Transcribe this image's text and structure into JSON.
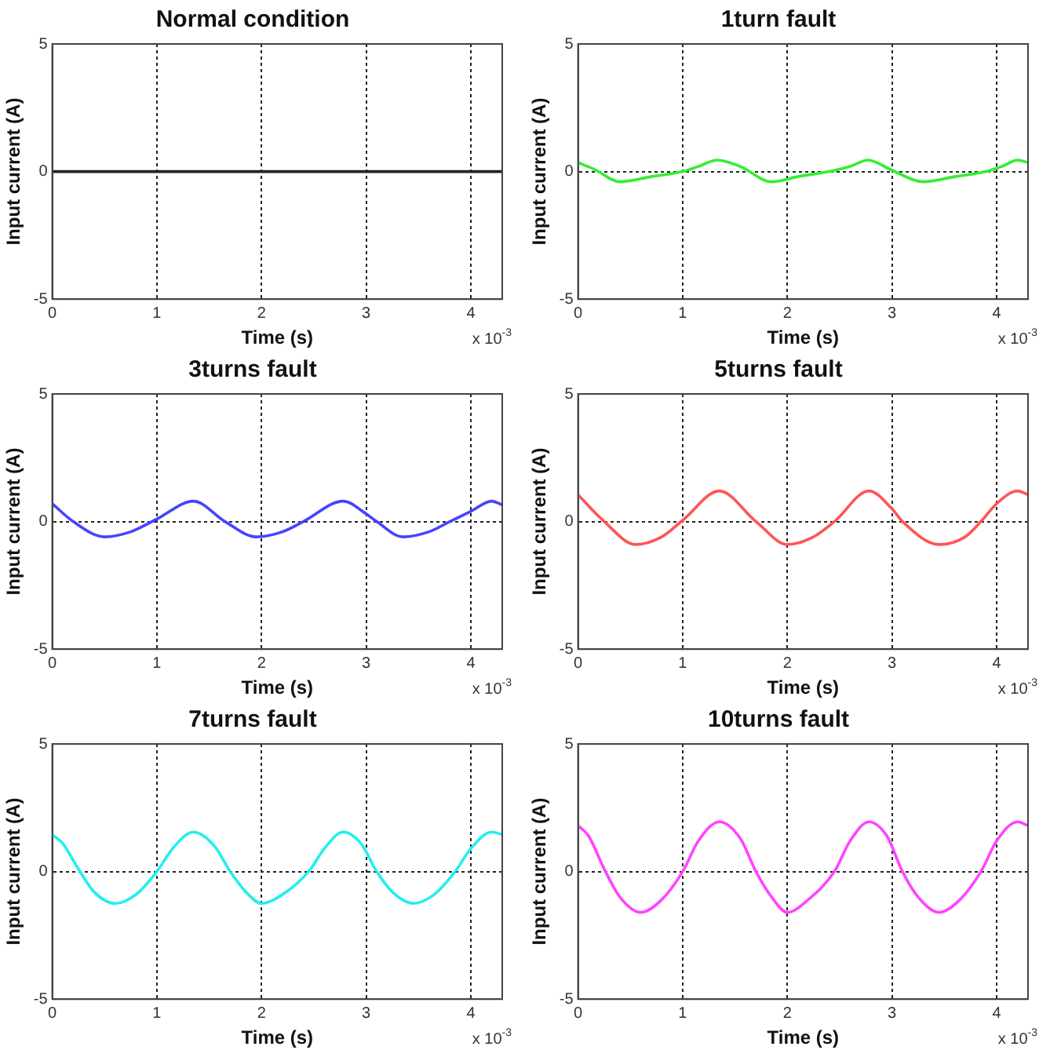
{
  "chart_data": [
    {
      "type": "line",
      "title": "Normal condition",
      "xlabel": "Time (s)",
      "ylabel": "Input current (A)",
      "annotations": [
        "x 10$^{-3}$"
      ],
      "x": [
        0,
        4.3
      ],
      "series": [
        {
          "color": "#222222",
          "values": [
            0,
            0
          ]
        }
      ],
      "xlim": [
        0,
        4.3
      ],
      "xticks": [
        0,
        1,
        2,
        3,
        4
      ],
      "ylim": [
        -5,
        5
      ],
      "yticks": [
        -5,
        0,
        5
      ],
      "grid": "x"
    },
    {
      "type": "line",
      "title": "1turn fault",
      "xlabel": "Time (s)",
      "ylabel": "Input current (A)",
      "annotations": [
        "x 10$^{-3}$"
      ],
      "x": [
        0,
        0.15,
        0.4,
        0.7,
        1.0,
        1.15,
        1.33,
        1.55,
        1.85,
        2.1,
        2.4,
        2.6,
        2.77,
        3.0,
        3.3,
        3.6,
        3.9,
        4.05,
        4.2,
        4.3
      ],
      "series": [
        {
          "color": "#33ee33",
          "values": [
            0.35,
            0.1,
            -0.4,
            -0.2,
            0,
            0.2,
            0.45,
            0.2,
            -0.4,
            -0.2,
            0,
            0.2,
            0.45,
            0.05,
            -0.4,
            -0.2,
            0,
            0.2,
            0.45,
            0.35
          ]
        }
      ],
      "xlim": [
        0,
        4.3
      ],
      "xticks": [
        0,
        1,
        2,
        3,
        4
      ],
      "ylim": [
        -5,
        5
      ],
      "yticks": [
        -5,
        0,
        5
      ],
      "grid": true
    },
    {
      "type": "line",
      "title": "3turns fault",
      "xlabel": "Time (s)",
      "ylabel": "Input current (A)",
      "annotations": [
        "x 10$^{-3}$"
      ],
      "x": [
        0,
        0.2,
        0.5,
        0.75,
        1.0,
        1.35,
        1.65,
        1.95,
        2.2,
        2.4,
        2.78,
        3.0,
        3.1,
        3.35,
        3.6,
        3.8,
        4.0,
        4.2,
        4.3
      ],
      "series": [
        {
          "color": "#4444ff",
          "values": [
            0.7,
            0,
            -0.6,
            -0.4,
            0.1,
            0.8,
            0,
            -0.6,
            -0.4,
            0,
            0.8,
            0.3,
            0,
            -0.6,
            -0.4,
            0,
            0.4,
            0.8,
            0.65
          ]
        }
      ],
      "xlim": [
        0,
        4.3
      ],
      "xticks": [
        0,
        1,
        2,
        3,
        4
      ],
      "ylim": [
        -5,
        5
      ],
      "yticks": [
        -5,
        0,
        5
      ],
      "grid": true
    },
    {
      "type": "line",
      "title": "5turns fault",
      "xlabel": "Time (s)",
      "ylabel": "Input current (A)",
      "annotations": [
        "x 10$^{-3}$"
      ],
      "x": [
        0,
        0.25,
        0.55,
        0.8,
        1.0,
        1.35,
        1.7,
        2.0,
        2.25,
        2.45,
        2.78,
        3.0,
        3.1,
        3.45,
        3.7,
        3.85,
        4.0,
        4.2,
        4.3
      ],
      "series": [
        {
          "color": "#ff5555",
          "values": [
            1.05,
            0,
            -0.9,
            -0.6,
            0.05,
            1.2,
            0,
            -0.9,
            -0.6,
            0,
            1.2,
            0.5,
            0,
            -0.9,
            -0.6,
            0,
            0.7,
            1.2,
            1.05
          ]
        }
      ],
      "xlim": [
        0,
        4.3
      ],
      "xticks": [
        0,
        1,
        2,
        3,
        4
      ],
      "ylim": [
        -5,
        5
      ],
      "yticks": [
        -5,
        0,
        5
      ],
      "grid": true
    },
    {
      "type": "line",
      "title": "7turns fault",
      "xlabel": "Time (s)",
      "ylabel": "Input current (A)",
      "annotations": [
        "x 10$^{-3}$"
      ],
      "x": [
        0,
        0.1,
        0.25,
        0.4,
        0.6,
        0.8,
        1.0,
        1.15,
        1.35,
        1.55,
        1.7,
        1.85,
        2.0,
        2.2,
        2.45,
        2.6,
        2.78,
        2.95,
        3.1,
        3.25,
        3.45,
        3.65,
        3.85,
        4.0,
        4.2,
        4.3
      ],
      "series": [
        {
          "color": "#22eeee",
          "values": [
            1.45,
            1.1,
            0.1,
            -0.8,
            -1.25,
            -0.9,
            0,
            0.9,
            1.55,
            1.0,
            0,
            -0.8,
            -1.25,
            -0.9,
            0,
            0.9,
            1.55,
            1.1,
            0,
            -0.8,
            -1.25,
            -0.9,
            0,
            0.9,
            1.55,
            1.45
          ]
        }
      ],
      "xlim": [
        0,
        4.3
      ],
      "xticks": [
        0,
        1,
        2,
        3,
        4
      ],
      "ylim": [
        -5,
        5
      ],
      "yticks": [
        -5,
        0,
        5
      ],
      "grid": true
    },
    {
      "type": "line",
      "title": "10turns fault",
      "xlabel": "Time (s)",
      "ylabel": "Input current (A)",
      "annotations": [
        "x 10$^{-3}$"
      ],
      "x": [
        0,
        0.1,
        0.25,
        0.4,
        0.6,
        0.8,
        1.0,
        1.15,
        1.35,
        1.55,
        1.7,
        1.85,
        2.0,
        2.2,
        2.45,
        2.6,
        2.78,
        2.95,
        3.1,
        3.25,
        3.45,
        3.65,
        3.85,
        4.0,
        4.2,
        4.3
      ],
      "series": [
        {
          "color": "#ff44ff",
          "values": [
            1.8,
            1.4,
            0.1,
            -1.0,
            -1.6,
            -1.1,
            0,
            1.2,
            1.95,
            1.3,
            0,
            -1.0,
            -1.6,
            -1.1,
            0,
            1.2,
            1.95,
            1.4,
            0,
            -1.0,
            -1.6,
            -1.1,
            0,
            1.2,
            1.95,
            1.8
          ]
        }
      ],
      "xlim": [
        0,
        4.3
      ],
      "xticks": [
        0,
        1,
        2,
        3,
        4
      ],
      "ylim": [
        -5,
        5
      ],
      "yticks": [
        -5,
        0,
        5
      ],
      "grid": true
    }
  ]
}
